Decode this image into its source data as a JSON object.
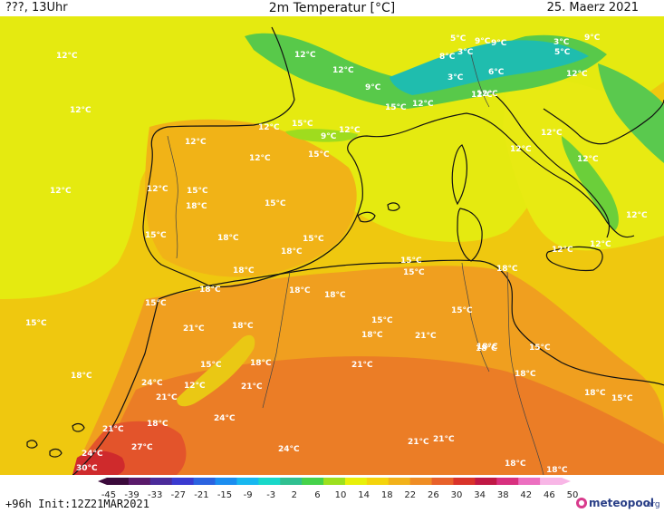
{
  "header": {
    "left": "???, 13Uhr",
    "title": "2m Temperatur [°C]",
    "right": "25. Maerz 2021"
  },
  "footer": {
    "forecast": "+96h Init:12Z21MAR2021",
    "logo_main": "meteopool",
    "logo_tld": ".org"
  },
  "legend": {
    "ticks": [
      "-45",
      "-39",
      "-33",
      "-27",
      "-21",
      "-15",
      "-9",
      "-3",
      "2",
      "6",
      "10",
      "14",
      "18",
      "22",
      "26",
      "30",
      "34",
      "38",
      "42",
      "46",
      "50"
    ],
    "colors": [
      "#3b0a3b",
      "#5a1a6a",
      "#4b2b9a",
      "#3a3ad0",
      "#2b63e0",
      "#1b8ef0",
      "#18b8f0",
      "#19d8c9",
      "#30c090",
      "#46d24a",
      "#9de01e",
      "#e8f00a",
      "#f4d40c",
      "#f2b21a",
      "#ef8d24",
      "#e8612a",
      "#d9332a",
      "#c01845",
      "#d8307f",
      "#ec6fc0",
      "#f8b6e6"
    ]
  },
  "map_labels": [
    {
      "id": "l1",
      "text": "12°C"
    },
    {
      "id": "l2",
      "text": "12°C"
    },
    {
      "id": "l3",
      "text": "12°C"
    },
    {
      "id": "l4",
      "text": "15°C"
    },
    {
      "id": "l5",
      "text": "18°C"
    },
    {
      "id": "l6",
      "text": "24°C"
    },
    {
      "id": "l7",
      "text": "21°C"
    },
    {
      "id": "l8",
      "text": "24°C"
    },
    {
      "id": "l9",
      "text": "30°C"
    },
    {
      "id": "l10",
      "text": "12°C"
    },
    {
      "id": "l11",
      "text": "12°C"
    },
    {
      "id": "l12",
      "text": "12°C"
    },
    {
      "id": "l13",
      "text": "15°C"
    },
    {
      "id": "l14",
      "text": "18°C"
    },
    {
      "id": "l15",
      "text": "15°C"
    },
    {
      "id": "l16",
      "text": "18°C"
    },
    {
      "id": "l17",
      "text": "15°C"
    },
    {
      "id": "l18",
      "text": "21°C"
    },
    {
      "id": "l19",
      "text": "18°C"
    },
    {
      "id": "l20",
      "text": "15°C"
    },
    {
      "id": "l21",
      "text": "12°C"
    },
    {
      "id": "l22",
      "text": "21°C"
    },
    {
      "id": "l23",
      "text": "18°C"
    },
    {
      "id": "l24",
      "text": "27°C"
    },
    {
      "id": "l25",
      "text": "12°C"
    },
    {
      "id": "l26",
      "text": "12°C"
    },
    {
      "id": "l27",
      "text": "15°C"
    },
    {
      "id": "l28",
      "text": "12°C"
    },
    {
      "id": "l29",
      "text": "15°C"
    },
    {
      "id": "l30",
      "text": "18°C"
    },
    {
      "id": "l31",
      "text": "18°C"
    },
    {
      "id": "l32",
      "text": "18°C"
    },
    {
      "id": "l33",
      "text": "18°C"
    },
    {
      "id": "l34",
      "text": "24°C"
    },
    {
      "id": "l35",
      "text": "21°C"
    },
    {
      "id": "l36",
      "text": "24°C"
    },
    {
      "id": "l37",
      "text": "9°C"
    },
    {
      "id": "l38",
      "text": "15°C"
    },
    {
      "id": "l39",
      "text": "15°C"
    },
    {
      "id": "l40",
      "text": "18°C"
    },
    {
      "id": "l41",
      "text": "18°C"
    },
    {
      "id": "l42",
      "text": "12°C"
    },
    {
      "id": "l43",
      "text": "9°C"
    },
    {
      "id": "l44",
      "text": "15°C"
    },
    {
      "id": "l45",
      "text": "12°C"
    },
    {
      "id": "l46",
      "text": "15°C"
    },
    {
      "id": "l47",
      "text": "15°C"
    },
    {
      "id": "l48",
      "text": "18°C"
    },
    {
      "id": "l49",
      "text": "21°C"
    },
    {
      "id": "l50",
      "text": "21°C"
    },
    {
      "id": "l51",
      "text": "21°C"
    },
    {
      "id": "l52",
      "text": "21°C"
    },
    {
      "id": "l53",
      "text": "15°C"
    },
    {
      "id": "l54",
      "text": "18°C"
    },
    {
      "id": "l55",
      "text": "5°C"
    },
    {
      "id": "l56",
      "text": "8°C"
    },
    {
      "id": "l57",
      "text": "9°C"
    },
    {
      "id": "l58",
      "text": "3°C"
    },
    {
      "id": "l59",
      "text": "9°C"
    },
    {
      "id": "l60",
      "text": "6°C"
    },
    {
      "id": "l61",
      "text": "3°C"
    },
    {
      "id": "l62",
      "text": "12°C"
    },
    {
      "id": "l63",
      "text": "12°C"
    },
    {
      "id": "l64",
      "text": "18°C"
    },
    {
      "id": "l65",
      "text": "15°C"
    },
    {
      "id": "l66",
      "text": "18°C"
    },
    {
      "id": "l67",
      "text": "18°C"
    },
    {
      "id": "l68",
      "text": "3°C"
    },
    {
      "id": "l69",
      "text": "5°C"
    },
    {
      "id": "l70",
      "text": "9°C"
    },
    {
      "id": "l71",
      "text": "12°C"
    },
    {
      "id": "l72",
      "text": "12°C"
    },
    {
      "id": "l73",
      "text": "12°C"
    },
    {
      "id": "l74",
      "text": "12°C"
    },
    {
      "id": "l75",
      "text": "12°C"
    },
    {
      "id": "l76",
      "text": "18°C"
    },
    {
      "id": "l77",
      "text": "15°C"
    },
    {
      "id": "l78",
      "text": "18°C"
    },
    {
      "id": "l79",
      "text": "12°C"
    },
    {
      "id": "l80",
      "text": "12°C"
    },
    {
      "id": "l81",
      "text": "18°C"
    },
    {
      "id": "l82",
      "text": "15°C"
    }
  ]
}
